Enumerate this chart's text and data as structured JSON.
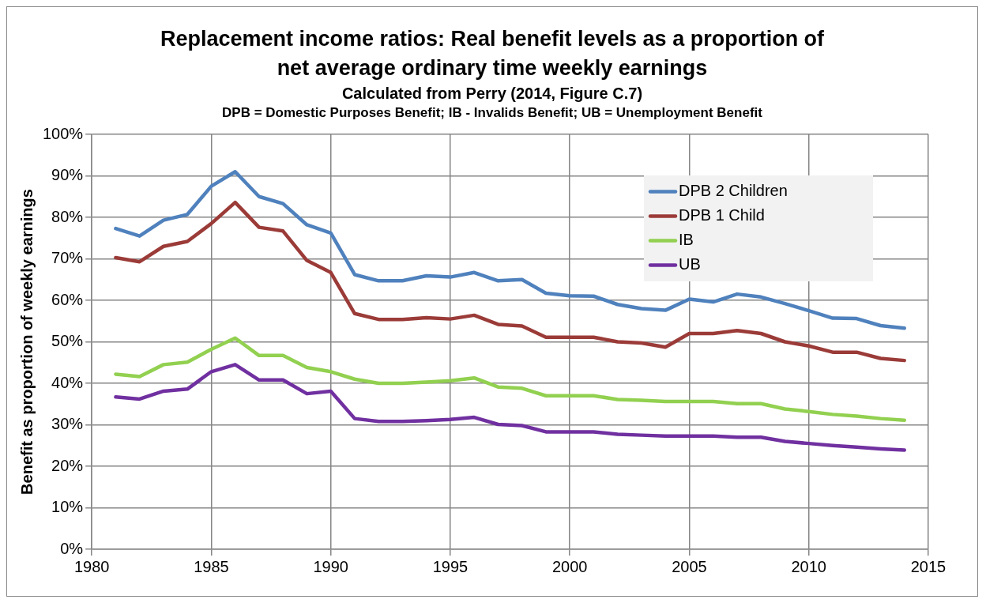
{
  "chart_data": {
    "type": "line",
    "title": "Replacement income ratios: Real benefit levels as a proportion of net average ordinary time weekly earnings",
    "subtitle": "Calculated from Perry (2014, Figure C.7)",
    "annotations": [
      "DPB = Domestic Purposes Benefit; IB - Invalids Benefit; UB = Unemployment Benefit"
    ],
    "ylabel": "Benefit as proportion of weekly earnings",
    "x": [
      1981,
      1982,
      1983,
      1984,
      1985,
      1986,
      1987,
      1988,
      1989,
      1990,
      1991,
      1992,
      1993,
      1994,
      1995,
      1996,
      1997,
      1998,
      1999,
      2000,
      2001,
      2002,
      2003,
      2004,
      2005,
      2006,
      2007,
      2008,
      2009,
      2010,
      2011,
      2012,
      2013,
      2014
    ],
    "series": [
      {
        "name": "DPB 2 Children",
        "color": "#4f81bd",
        "values": [
          77.3,
          75.5,
          79.3,
          80.7,
          87.5,
          91,
          85,
          83.3,
          78.2,
          76.2,
          66.2,
          64.7,
          64.7,
          65.9,
          65.6,
          66.7,
          64.7,
          65,
          61.7,
          61.1,
          61,
          59,
          58,
          57.6,
          60.3,
          59.6,
          61.5,
          60.8,
          59.2,
          57.5,
          55.7,
          55.6,
          53.9,
          53.3
        ]
      },
      {
        "name": "DPB 1 Child",
        "color": "#9b3b38",
        "values": [
          70.3,
          69.3,
          73,
          74.2,
          78.5,
          83.6,
          77.6,
          76.7,
          69.6,
          66.7,
          56.8,
          55.4,
          55.4,
          55.8,
          55.5,
          56.4,
          54.2,
          53.8,
          51.1,
          51.1,
          51.1,
          50,
          49.7,
          48.7,
          52,
          52,
          52.7,
          52,
          50,
          49,
          47.5,
          47.5,
          46,
          45.5
        ]
      },
      {
        "name": "IB",
        "color": "#92d050",
        "values": [
          42.2,
          41.6,
          44.5,
          45.1,
          48.2,
          50.9,
          46.7,
          46.7,
          43.8,
          42.8,
          41,
          40,
          40,
          40.3,
          40.6,
          41.3,
          39.1,
          38.8,
          37,
          37,
          37,
          36.1,
          35.9,
          35.6,
          35.6,
          35.6,
          35.1,
          35.1,
          33.8,
          33.2,
          32.5,
          32.1,
          31.5,
          31.1
        ]
      },
      {
        "name": "UB",
        "color": "#7030a0",
        "values": [
          36.7,
          36.2,
          38.1,
          38.6,
          42.8,
          44.5,
          40.8,
          40.8,
          37.5,
          38.1,
          31.5,
          30.8,
          30.8,
          31,
          31.3,
          31.8,
          30.1,
          29.8,
          28.3,
          28.3,
          28.3,
          27.7,
          27.5,
          27.3,
          27.3,
          27.3,
          27,
          27,
          26,
          25.5,
          25,
          24.6,
          24.2,
          23.9
        ]
      }
    ],
    "xlim": [
      1980,
      2015
    ],
    "xticks": [
      1980,
      1985,
      1990,
      1995,
      2000,
      2005,
      2010,
      2015
    ],
    "ylim": [
      0,
      100
    ],
    "yticks": [
      {
        "value": 0,
        "label": "0%"
      },
      {
        "value": 10,
        "label": "10%"
      },
      {
        "value": 20,
        "label": "20%"
      },
      {
        "value": 30,
        "label": "30%"
      },
      {
        "value": 40,
        "label": "40%"
      },
      {
        "value": 50,
        "label": "50%"
      },
      {
        "value": 60,
        "label": "60%"
      },
      {
        "value": 70,
        "label": "70%"
      },
      {
        "value": 80,
        "label": "80%"
      },
      {
        "value": 90,
        "label": "90%"
      },
      {
        "value": 100,
        "label": "100%"
      }
    ],
    "grid": true,
    "legend": "top right",
    "marker": "none",
    "line_style": "solid"
  }
}
